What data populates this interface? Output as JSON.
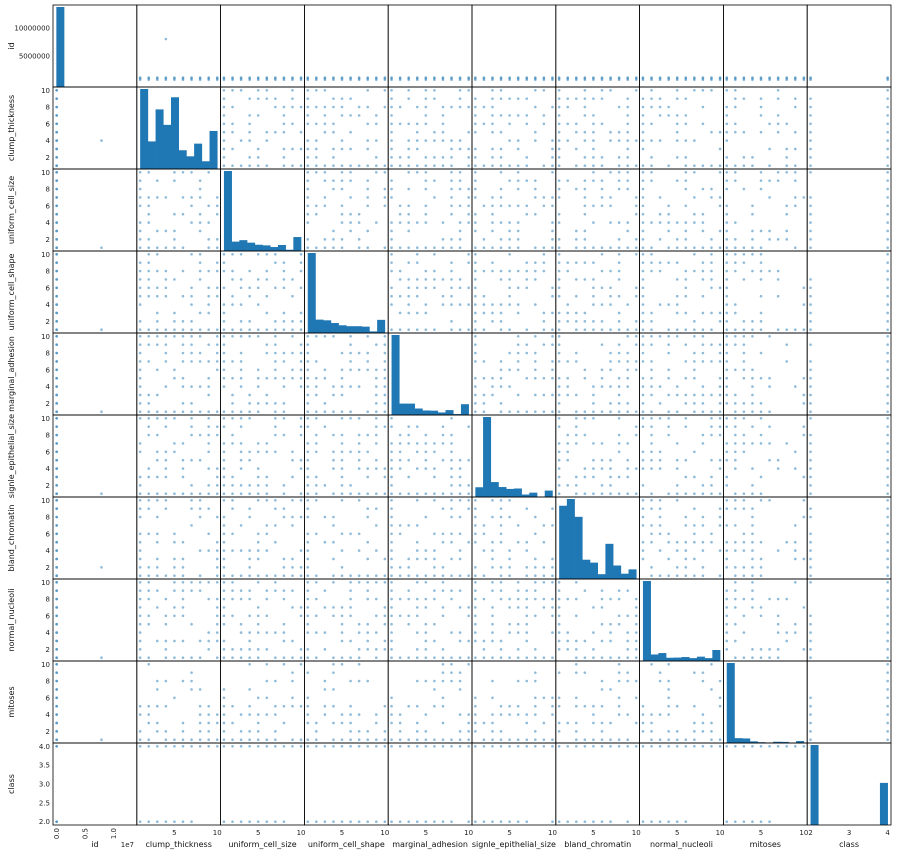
{
  "chart_data": {
    "type": "scatter",
    "variables": [
      "id",
      "clump_thickness",
      "uniform_cell_size",
      "uniform_cell_shape",
      "marginal_adhesion",
      "signle_epithelial_size",
      "bland_chromatin",
      "normal_nucleoli",
      "mitoses",
      "class"
    ],
    "diagonal": "histogram",
    "color": "#1f77b4",
    "tick_labels": {
      "id_y": [
        "5000000",
        "10000000"
      ],
      "id_x": [
        "0.0",
        "0.5",
        "1.0"
      ],
      "id_offset": "1e7",
      "y_1_10": [
        "2",
        "4",
        "6",
        "8",
        "10"
      ],
      "x_1_10": [
        "5",
        "10"
      ],
      "class_y": [
        "2.0",
        "2.5",
        "3.0",
        "3.5",
        "4.0"
      ],
      "class_x": [
        "2",
        "3",
        "4"
      ]
    },
    "histograms": {
      "id": [
        690,
        2,
        1,
        1,
        1,
        0,
        0,
        0,
        0,
        1
      ],
      "clump_thickness": [
        145,
        50,
        108,
        80,
        130,
        34,
        23,
        46,
        14,
        69
      ],
      "uniform_cell_size": [
        384,
        45,
        52,
        40,
        30,
        27,
        19,
        29,
        6,
        67
      ],
      "uniform_cell_shape": [
        353,
        59,
        56,
        44,
        34,
        30,
        30,
        28,
        7,
        58
      ],
      "marginal_adhesion": [
        407,
        58,
        58,
        33,
        23,
        22,
        13,
        25,
        5,
        55
      ],
      "signle_epithelial_size": [
        47,
        386,
        72,
        48,
        39,
        41,
        12,
        21,
        2,
        31
      ],
      "bland_chromatin": [
        152,
        166,
        129,
        40,
        34,
        10,
        73,
        28,
        11,
        20
      ],
      "normal_nucleoli": [
        443,
        36,
        44,
        18,
        19,
        22,
        16,
        24,
        16,
        61
      ],
      "mitoses": [
        579,
        35,
        33,
        12,
        6,
        3,
        9,
        8,
        0,
        14
      ],
      "class": [
        458,
        0,
        0,
        0,
        0,
        0,
        0,
        0,
        0,
        241
      ]
    }
  }
}
